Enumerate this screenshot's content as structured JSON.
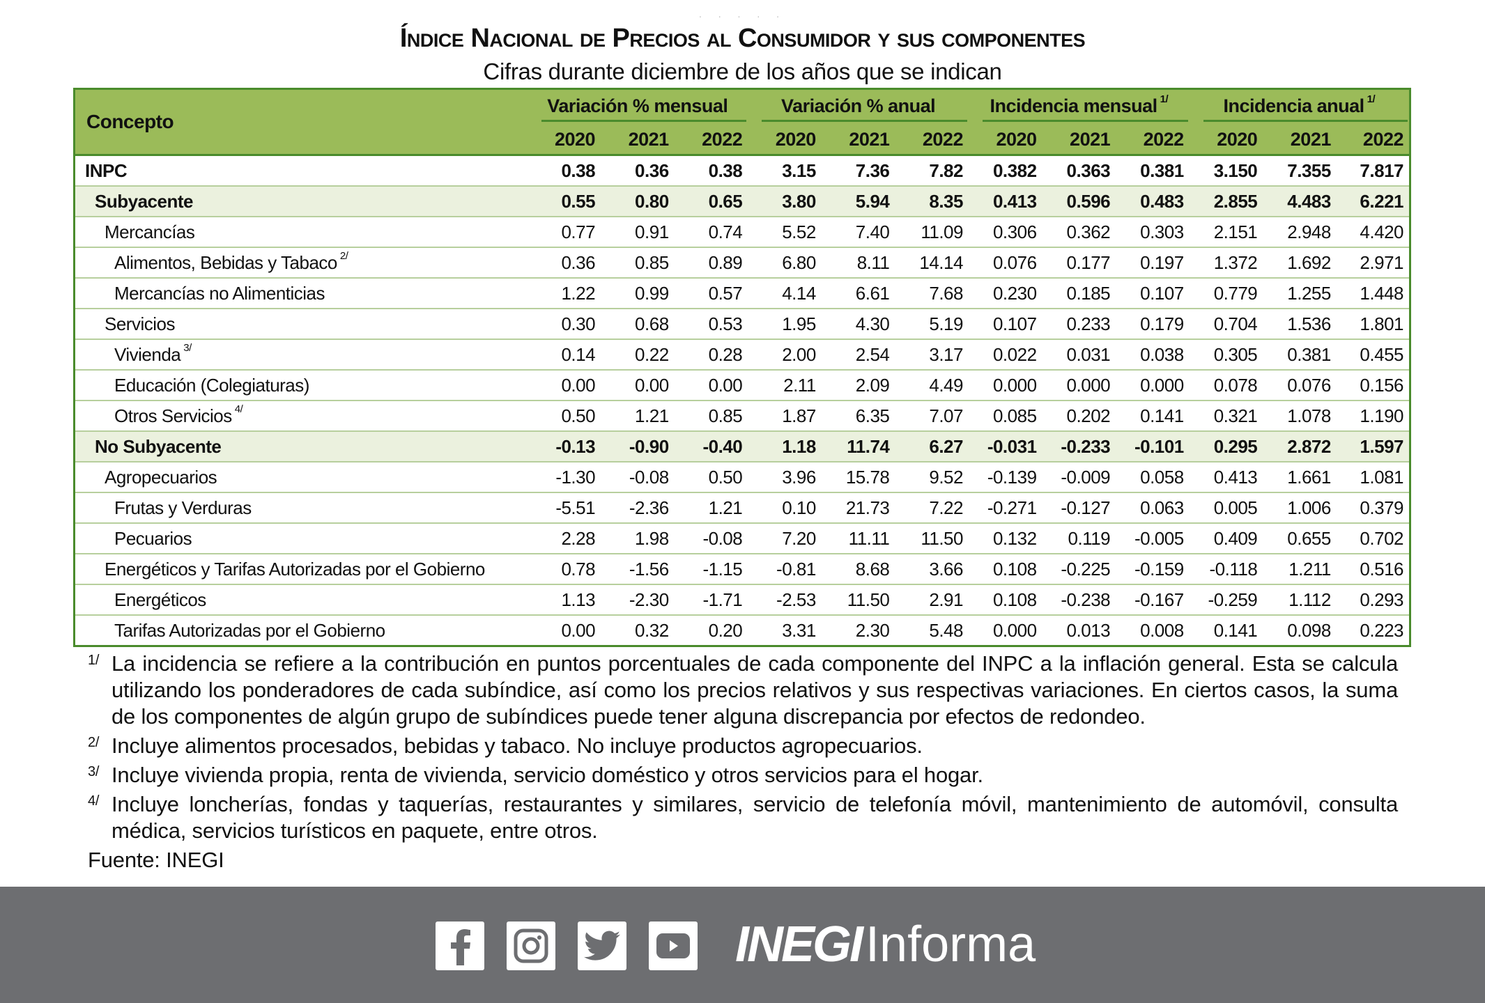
{
  "title": "Índice Nacional de Precios al Consumidor y sus componentes",
  "subtitle": "Cifras durante diciembre de los años que se indican",
  "table": {
    "concept_header": "Concepto",
    "groups": [
      {
        "label": "Variación % mensual",
        "note": ""
      },
      {
        "label": "Variación % anual",
        "note": ""
      },
      {
        "label": "Incidencia mensual",
        "note": "1/"
      },
      {
        "label": "Incidencia anual",
        "note": "1/"
      }
    ],
    "years": [
      "2020",
      "2021",
      "2022"
    ],
    "rows": [
      {
        "label": "INPC",
        "note": "",
        "level": 0,
        "values": [
          "0.38",
          "0.36",
          "0.38",
          "3.15",
          "7.36",
          "7.82",
          "0.382",
          "0.363",
          "0.381",
          "3.150",
          "7.355",
          "7.817"
        ]
      },
      {
        "label": "Subyacente",
        "note": "",
        "level": 1,
        "values": [
          "0.55",
          "0.80",
          "0.65",
          "3.80",
          "5.94",
          "8.35",
          "0.413",
          "0.596",
          "0.483",
          "2.855",
          "4.483",
          "6.221"
        ]
      },
      {
        "label": "Mercancías",
        "note": "",
        "level": 2,
        "values": [
          "0.77",
          "0.91",
          "0.74",
          "5.52",
          "7.40",
          "11.09",
          "0.306",
          "0.362",
          "0.303",
          "2.151",
          "2.948",
          "4.420"
        ]
      },
      {
        "label": "Alimentos, Bebidas y Tabaco",
        "note": "2/",
        "level": 3,
        "values": [
          "0.36",
          "0.85",
          "0.89",
          "6.80",
          "8.11",
          "14.14",
          "0.076",
          "0.177",
          "0.197",
          "1.372",
          "1.692",
          "2.971"
        ]
      },
      {
        "label": "Mercancías no Alimenticias",
        "note": "",
        "level": 3,
        "values": [
          "1.22",
          "0.99",
          "0.57",
          "4.14",
          "6.61",
          "7.68",
          "0.230",
          "0.185",
          "0.107",
          "0.779",
          "1.255",
          "1.448"
        ]
      },
      {
        "label": "Servicios",
        "note": "",
        "level": 2,
        "values": [
          "0.30",
          "0.68",
          "0.53",
          "1.95",
          "4.30",
          "5.19",
          "0.107",
          "0.233",
          "0.179",
          "0.704",
          "1.536",
          "1.801"
        ]
      },
      {
        "label": "Vivienda",
        "note": "3/",
        "level": 3,
        "values": [
          "0.14",
          "0.22",
          "0.28",
          "2.00",
          "2.54",
          "3.17",
          "0.022",
          "0.031",
          "0.038",
          "0.305",
          "0.381",
          "0.455"
        ]
      },
      {
        "label": "Educación (Colegiaturas)",
        "note": "",
        "level": 3,
        "values": [
          "0.00",
          "0.00",
          "0.00",
          "2.11",
          "2.09",
          "4.49",
          "0.000",
          "0.000",
          "0.000",
          "0.078",
          "0.076",
          "0.156"
        ]
      },
      {
        "label": "Otros Servicios",
        "note": "4/",
        "level": 3,
        "values": [
          "0.50",
          "1.21",
          "0.85",
          "1.87",
          "6.35",
          "7.07",
          "0.085",
          "0.202",
          "0.141",
          "0.321",
          "1.078",
          "1.190"
        ]
      },
      {
        "label": "No Subyacente",
        "note": "",
        "level": 1,
        "values": [
          "-0.13",
          "-0.90",
          "-0.40",
          "1.18",
          "11.74",
          "6.27",
          "-0.031",
          "-0.233",
          "-0.101",
          "0.295",
          "2.872",
          "1.597"
        ]
      },
      {
        "label": "Agropecuarios",
        "note": "",
        "level": 2,
        "values": [
          "-1.30",
          "-0.08",
          "0.50",
          "3.96",
          "15.78",
          "9.52",
          "-0.139",
          "-0.009",
          "0.058",
          "0.413",
          "1.661",
          "1.081"
        ]
      },
      {
        "label": "Frutas y Verduras",
        "note": "",
        "level": 3,
        "values": [
          "-5.51",
          "-2.36",
          "1.21",
          "0.10",
          "21.73",
          "7.22",
          "-0.271",
          "-0.127",
          "0.063",
          "0.005",
          "1.006",
          "0.379"
        ]
      },
      {
        "label": "Pecuarios",
        "note": "",
        "level": 3,
        "values": [
          "2.28",
          "1.98",
          "-0.08",
          "7.20",
          "11.11",
          "11.50",
          "0.132",
          "0.119",
          "-0.005",
          "0.409",
          "0.655",
          "0.702"
        ]
      },
      {
        "label": "Energéticos y Tarifas Autorizadas por el Gobierno",
        "note": "",
        "level": 2,
        "values": [
          "0.78",
          "-1.56",
          "-1.15",
          "-0.81",
          "8.68",
          "3.66",
          "0.108",
          "-0.225",
          "-0.159",
          "-0.118",
          "1.211",
          "0.516"
        ]
      },
      {
        "label": "Energéticos",
        "note": "",
        "level": 3,
        "values": [
          "1.13",
          "-2.30",
          "-1.71",
          "-2.53",
          "11.50",
          "2.91",
          "0.108",
          "-0.238",
          "-0.167",
          "-0.259",
          "1.112",
          "0.293"
        ]
      },
      {
        "label": "Tarifas Autorizadas por el Gobierno",
        "note": "",
        "level": 3,
        "values": [
          "0.00",
          "0.32",
          "0.20",
          "3.31",
          "2.30",
          "5.48",
          "0.000",
          "0.013",
          "0.008",
          "0.141",
          "0.098",
          "0.223"
        ]
      }
    ]
  },
  "footnotes": [
    {
      "num": "1/",
      "text": "La incidencia se refiere a la contribución en puntos porcentuales de cada componente del INPC a la inflación general. Esta se calcula utilizando los ponderadores de cada subíndice, así como los precios relativos y sus respectivas variaciones. En ciertos casos, la suma de los componentes de algún grupo de subíndices puede tener alguna discrepancia por efectos de redondeo."
    },
    {
      "num": "2/",
      "text": "Incluye alimentos procesados, bebidas y tabaco. No incluye productos agropecuarios."
    },
    {
      "num": "3/",
      "text": "Incluye vivienda propia, renta de vivienda, servicio doméstico y otros servicios para el hogar."
    },
    {
      "num": "4/",
      "text": "Incluye loncherías, fondas y taquerías, restaurantes y similares, servicio de telefonía móvil, mantenimiento de automóvil, consulta médica, servicios turísticos en paquete, entre otros."
    }
  ],
  "source": "Fuente: INEGI",
  "footer": {
    "brand_bold": "INEGI",
    "brand_light": "Informa",
    "icons": [
      "facebook-icon",
      "instagram-icon",
      "twitter-icon",
      "youtube-icon"
    ],
    "background": "#6d6e71"
  },
  "colors": {
    "header_bg": "#9bbb59",
    "border": "#4a8b2c",
    "shaded_row": "#ebf1de"
  }
}
